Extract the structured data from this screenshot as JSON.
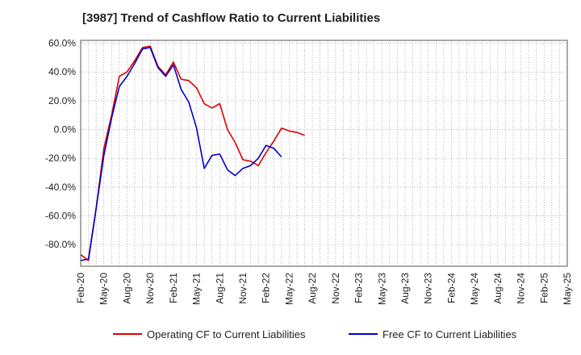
{
  "chart_data": {
    "type": "line",
    "title": "[3987]  Trend of Cashflow Ratio to Current Liabilities",
    "xlabel": "",
    "ylabel": "",
    "ylim": [
      -95,
      62
    ],
    "yticks": [
      60,
      40,
      20,
      0,
      -20,
      -40,
      -60,
      -80
    ],
    "ytick_labels": [
      "60.0%",
      "40.0%",
      "20.0%",
      "0.0%",
      "-20.0%",
      "-40.0%",
      "-60.0%",
      "-80.0%"
    ],
    "x_tick_labels": [
      "Feb-20",
      "May-20",
      "Aug-20",
      "Nov-20",
      "Feb-21",
      "May-21",
      "Aug-21",
      "Nov-21",
      "Feb-22",
      "May-22",
      "Aug-22",
      "Nov-22",
      "Feb-23",
      "May-23",
      "Aug-23",
      "Nov-23",
      "Feb-24",
      "May-24",
      "Aug-24",
      "Nov-24",
      "Feb-25",
      "May-25"
    ],
    "grid": true,
    "legend_position": "bottom",
    "series": [
      {
        "name": "Operating CF to Current Liabilities",
        "color": "#dd0000",
        "points": [
          [
            "2020-02",
            -87
          ],
          [
            "2020-03",
            -91
          ],
          [
            "2020-04",
            -55
          ],
          [
            "2020-05",
            -13
          ],
          [
            "2020-06",
            10
          ],
          [
            "2020-07",
            37
          ],
          [
            "2020-08",
            40
          ],
          [
            "2020-09",
            48
          ],
          [
            "2020-10",
            57
          ],
          [
            "2020-11",
            58
          ],
          [
            "2020-12",
            44
          ],
          [
            "2021-01",
            38
          ],
          [
            "2021-02",
            47
          ],
          [
            "2021-03",
            35
          ],
          [
            "2021-04",
            34
          ],
          [
            "2021-05",
            29
          ],
          [
            "2021-06",
            18
          ],
          [
            "2021-07",
            15
          ],
          [
            "2021-08",
            18
          ],
          [
            "2021-09",
            0
          ],
          [
            "2021-10",
            -9
          ],
          [
            "2021-11",
            -21
          ],
          [
            "2021-12",
            -22
          ],
          [
            "2022-01",
            -25
          ],
          [
            "2022-02",
            -16
          ],
          [
            "2022-03",
            -8
          ],
          [
            "2022-04",
            1
          ],
          [
            "2022-05",
            -1
          ],
          [
            "2022-06",
            -2
          ],
          [
            "2022-07",
            -4
          ]
        ]
      },
      {
        "name": "Free CF to Current Liabilities",
        "color": "#0000cc",
        "points": [
          [
            "2020-02",
            -91
          ],
          [
            "2020-03",
            -90
          ],
          [
            "2020-04",
            -55
          ],
          [
            "2020-05",
            -18
          ],
          [
            "2020-06",
            8
          ],
          [
            "2020-07",
            30
          ],
          [
            "2020-08",
            37
          ],
          [
            "2020-09",
            46
          ],
          [
            "2020-10",
            56
          ],
          [
            "2020-11",
            57
          ],
          [
            "2020-12",
            43
          ],
          [
            "2021-01",
            37
          ],
          [
            "2021-02",
            45
          ],
          [
            "2021-03",
            28
          ],
          [
            "2021-04",
            19
          ],
          [
            "2021-05",
            1
          ],
          [
            "2021-06",
            -27
          ],
          [
            "2021-07",
            -18
          ],
          [
            "2021-08",
            -17
          ],
          [
            "2021-09",
            -28
          ],
          [
            "2021-10",
            -32
          ],
          [
            "2021-11",
            -27
          ],
          [
            "2021-12",
            -25
          ],
          [
            "2022-01",
            -20
          ],
          [
            "2022-02",
            -11
          ],
          [
            "2022-03",
            -13
          ],
          [
            "2022-04",
            -19
          ]
        ]
      }
    ]
  }
}
